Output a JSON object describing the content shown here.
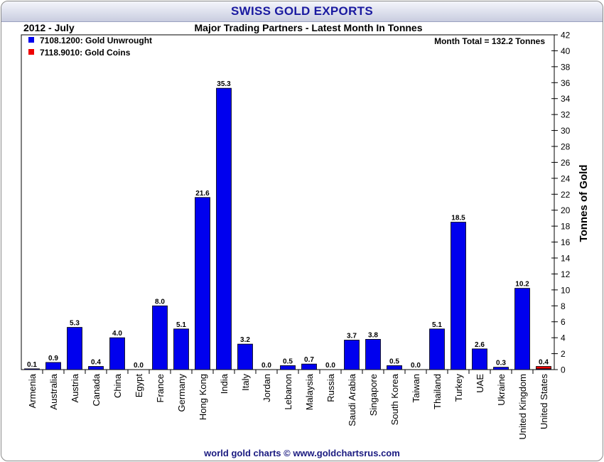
{
  "header": {
    "title": "SWISS GOLD EXPORTS",
    "period": "2012 - July",
    "subtitle": "Major Trading Partners - Latest Month In Tonnes",
    "month_total": "Month Total = 132.2 Tonnes"
  },
  "footer": {
    "credit": "world gold charts © www.goldchartsrus.com"
  },
  "colors": {
    "unwrought": "#0000ee",
    "coins": "#ee0000"
  },
  "chart_data": {
    "type": "bar",
    "stacked": true,
    "ylabel": "Tonnes of Gold",
    "ylim": [
      0,
      42
    ],
    "ytick_step": 2,
    "grid": false,
    "legend_position": "top-left",
    "categories": [
      "Armenia",
      "Australia",
      "Austria",
      "Canada",
      "China",
      "Egypt",
      "France",
      "Germany",
      "Hong Kong",
      "India",
      "Italy",
      "Jordan",
      "Lebanon",
      "Malaysia",
      "Russia",
      "Saudi Arabia",
      "Singapore",
      "South Korea",
      "Taiwan",
      "Thailand",
      "Turkey",
      "UAE",
      "Ukraine",
      "United Kingdom",
      "United States"
    ],
    "series": [
      {
        "name": "7108.1200: Gold Unwrought",
        "color": "#0000ee",
        "values": [
          0.1,
          0.9,
          5.3,
          0.4,
          4.0,
          0.0,
          8.0,
          5.1,
          21.6,
          35.3,
          3.2,
          0.0,
          0.5,
          0.7,
          0.0,
          3.7,
          3.8,
          0.5,
          0.0,
          5.1,
          18.5,
          2.6,
          0.3,
          10.2,
          0.1
        ]
      },
      {
        "name": "7118.9010: Gold Coins",
        "color": "#ee0000",
        "values": [
          0,
          0,
          0,
          0,
          0,
          0,
          0,
          0,
          0,
          0,
          0,
          0,
          0,
          0,
          0,
          0,
          0,
          0,
          0,
          0,
          0,
          0,
          0,
          0,
          0.3
        ]
      }
    ],
    "data_labels": [
      "0.1",
      "0.9",
      "5.3",
      "0.4",
      "4.0",
      "0.0",
      "8.0",
      "5.1",
      "21.6",
      "35.3",
      "3.2",
      "0.0",
      "0.5",
      "0.7",
      "0.0",
      "3.7",
      "3.8",
      "0.5",
      "0.0",
      "5.1",
      "18.5",
      "2.6",
      "0.3",
      "10.2",
      "0.4"
    ]
  }
}
